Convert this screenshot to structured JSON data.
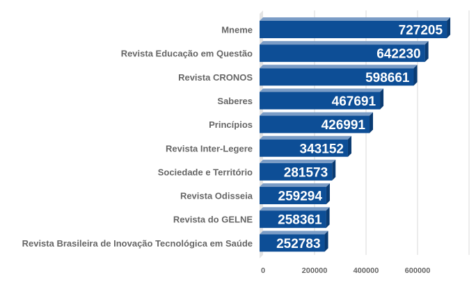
{
  "chart_data": {
    "type": "bar",
    "orientation": "horizontal",
    "style": "3d",
    "categories": [
      "Mneme",
      "Revista Educação em Questão",
      "Revista CRONOS",
      "Saberes",
      "Princípios",
      "Revista Inter-Legere",
      "Sociedade e Território",
      "Revista Odisseia",
      "Revista do GELNE",
      "Revista Brasileira de Inovação Tecnológica em Saúde"
    ],
    "values": [
      727205,
      642230,
      598661,
      467691,
      426991,
      343152,
      281573,
      259294,
      258361,
      252783
    ],
    "xticks": [
      0,
      200000,
      400000,
      600000
    ],
    "xlim": [
      0,
      800000
    ],
    "grid": true,
    "legend": "none",
    "title": "",
    "xlabel": "",
    "ylabel": "",
    "colors": {
      "bar_front": "#0d4e96",
      "bar_top": "#7a9cc6",
      "bar_side": "#0a3b72",
      "grid": "#d9d9d9",
      "floor": "#e3e3e3",
      "text": "#666666"
    }
  }
}
